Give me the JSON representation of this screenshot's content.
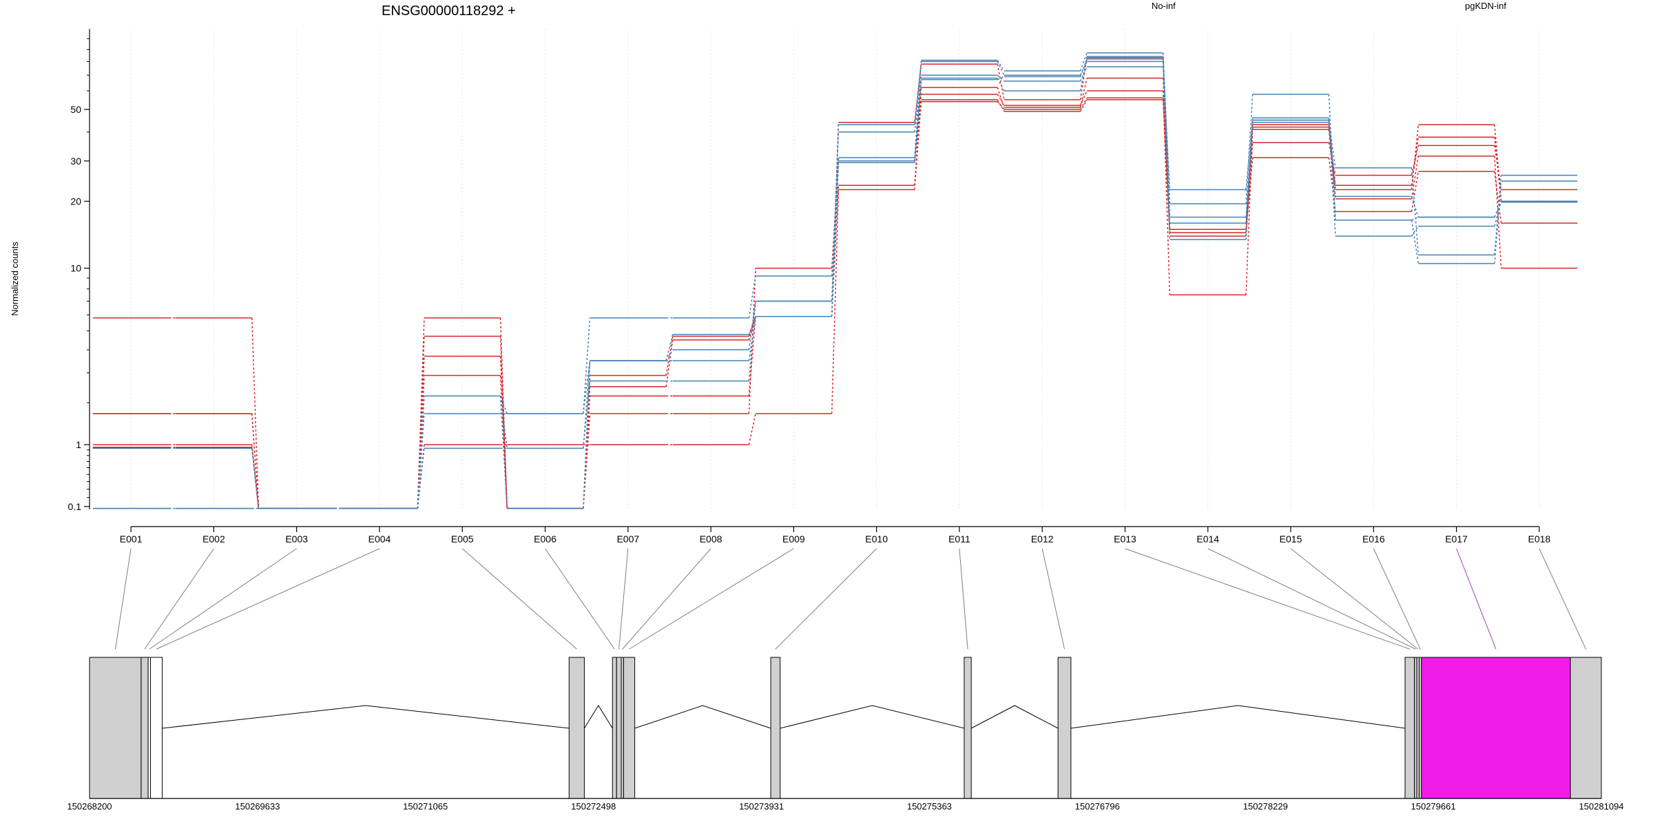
{
  "chart_data": {
    "type": "line",
    "title": "ENSG00000118292 +",
    "ylabel": "Normalized counts",
    "xlabel": "",
    "scale": "log(count + 1)",
    "ylim": [
      0.07,
      110
    ],
    "yticks": [
      0.1,
      1,
      10,
      20,
      30,
      50
    ],
    "ytick_labels": [
      "0.1",
      "1",
      "10",
      "20",
      "30",
      "50"
    ],
    "grid": "vertical dotted lines at each exon bin",
    "legend": [
      {
        "name": "No-inf",
        "color": "#d62728"
      },
      {
        "name": "pgKDN-inf",
        "color": "#4682b4"
      }
    ],
    "legend_placement": "top",
    "categories": [
      "E001",
      "E002",
      "E003",
      "E004",
      "E005",
      "E006",
      "E007",
      "E008",
      "E009",
      "E010",
      "E011",
      "E012",
      "E013",
      "E014",
      "E015",
      "E016",
      "E017",
      "E018"
    ],
    "groups": [
      {
        "name": "No-inf",
        "color": "#d62728",
        "samples": [
          [
            5.8,
            5.8,
            0.08,
            0.08,
            5.8,
            0.08,
            2.9,
            4.7,
            5.9,
            44,
            78,
            55,
            83,
            15,
            43,
            22.5,
            43,
            20
          ],
          [
            1.7,
            1.7,
            0.08,
            0.08,
            4.7,
            0.08,
            2.5,
            4.5,
            5.9,
            23.5,
            62,
            51,
            68,
            14.5,
            42,
            23.5,
            38,
            19.8
          ],
          [
            1.0,
            1.0,
            0.08,
            0.08,
            1.0,
            1.0,
            1.0,
            1.0,
            1.7,
            22.5,
            55,
            49,
            55,
            14.0,
            36,
            26,
            35,
            22.5
          ],
          [
            0.95,
            0.95,
            0.08,
            0.08,
            2.9,
            0.08,
            1.7,
            1.7,
            10,
            30,
            54,
            50,
            56,
            15.0,
            31,
            18,
            27,
            16
          ],
          [
            1.7,
            1.7,
            0.08,
            0.08,
            3.7,
            0.08,
            2.2,
            2.2,
            5.9,
            30,
            58,
            52,
            60,
            7.5,
            41,
            20.5,
            31.5,
            10
          ]
        ]
      },
      {
        "name": "pgKDN-inf",
        "color": "#4682b4",
        "samples": [
          [
            0.93,
            0.93,
            0.08,
            0.08,
            2.2,
            1.7,
            3.5,
            3.5,
            5.9,
            43,
            80,
            70,
            80,
            16,
            44,
            28,
            11.5,
            26
          ],
          [
            0.08,
            0.08,
            0.08,
            0.08,
            1.7,
            1.7,
            5.8,
            5.8,
            9.2,
            31,
            81,
            73,
            87,
            19.5,
            58,
            16.5,
            10.5,
            24.5
          ],
          [
            0.93,
            0.93,
            0.08,
            0.08,
            0.93,
            0.93,
            2.7,
            2.7,
            7.0,
            40,
            70,
            66,
            76,
            22.5,
            46,
            21,
            17,
            20
          ],
          [
            0.08,
            0.08,
            0.08,
            0.08,
            2.2,
            0.08,
            3.5,
            4.8,
            5.9,
            29.5,
            67,
            69,
            82,
            13.5,
            45,
            14,
            15.5,
            20
          ],
          [
            0.93,
            0.93,
            0.08,
            0.08,
            2.2,
            0.93,
            3.5,
            4.0,
            7.0,
            30,
            68,
            60,
            84,
            17,
            45,
            16.5,
            17,
            19.8
          ]
        ]
      }
    ],
    "gene_model": {
      "coordinate_ticks": [
        150268200,
        150269633,
        150271065,
        150272498,
        150273931,
        150275363,
        150276796,
        150278229,
        150279661,
        150281094
      ],
      "coordinate_tick_labels": [
        "150268200",
        "150269633",
        "150271065",
        "150272498",
        "150273931",
        "150275363",
        "150276796",
        "150278229",
        "150279661",
        "150281094"
      ],
      "exon_bins": [
        {
          "label": "E001",
          "start": 150268200,
          "end": 150268640,
          "color": "#d0d0d0"
        },
        {
          "label": "E002",
          "start": 150268640,
          "end": 150268700,
          "color": "#d0d0d0"
        },
        {
          "label": "E003",
          "start": 150268700,
          "end": 150268720,
          "color": "#ffffff"
        },
        {
          "label": "E004",
          "start": 150268720,
          "end": 150268820,
          "color": "#ffffff"
        },
        {
          "label": "E005",
          "start": 150272290,
          "end": 150272420,
          "color": "#d0d0d0"
        },
        {
          "label": "E006",
          "start": 150272660,
          "end": 150272695,
          "color": "#d0d0d0"
        },
        {
          "label": "E007",
          "start": 150272695,
          "end": 150272735,
          "color": "#d0d0d0"
        },
        {
          "label": "E008",
          "start": 150272735,
          "end": 150272755,
          "color": "#d0d0d0"
        },
        {
          "label": "E009",
          "start": 150272755,
          "end": 150272850,
          "color": "#d0d0d0"
        },
        {
          "label": "E010",
          "start": 150274010,
          "end": 150274090,
          "color": "#d0d0d0"
        },
        {
          "label": "E011",
          "start": 150275660,
          "end": 150275720,
          "color": "#d0d0d0"
        },
        {
          "label": "E012",
          "start": 150276460,
          "end": 150276570,
          "color": "#d0d0d0"
        },
        {
          "label": "E013",
          "start": 150279420,
          "end": 150279500,
          "color": "#d0d0d0"
        },
        {
          "label": "E014",
          "start": 150279500,
          "end": 150279520,
          "color": "#d0d0d0"
        },
        {
          "label": "E015",
          "start": 150279520,
          "end": 150279540,
          "color": "#d0d0d0"
        },
        {
          "label": "E016",
          "start": 150279540,
          "end": 150279560,
          "color": "#d0d0d0"
        },
        {
          "label": "E017",
          "start": 150279560,
          "end": 150280830,
          "color": "#f21ce9"
        },
        {
          "label": "E018",
          "start": 150280830,
          "end": 150281094,
          "color": "#d0d0d0"
        }
      ],
      "highlight_color": "#f21ce9"
    }
  }
}
